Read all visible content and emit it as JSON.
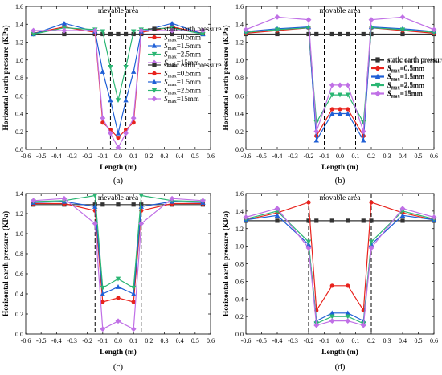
{
  "figure": {
    "panels": [
      "a",
      "b",
      "c",
      "d"
    ]
  },
  "chart_data": [
    {
      "id": "a",
      "type": "line",
      "panel_label": "(a)",
      "xlabel": "Length (m)",
      "ylabel": "Horizontal earth pressure (KPa)",
      "xlim": [
        -0.6,
        0.6
      ],
      "ylim": [
        0.0,
        1.6
      ],
      "xticks": [
        "-0.6",
        "-0.5",
        "-0.4",
        "-0.3",
        "-0.2",
        "-0.1",
        "0.0",
        "0.1",
        "0.2",
        "0.3",
        "0.4",
        "0.5",
        "0.6"
      ],
      "yticks": [
        "0.0",
        "0.2",
        "0.4",
        "0.6",
        "0.8",
        "1.0",
        "1.2",
        "1.4",
        "1.6"
      ],
      "annotation": "mevable area",
      "movable_bounds": [
        -0.05,
        0.05
      ],
      "legend_position": "right",
      "x": [
        -0.55,
        -0.35,
        -0.15,
        -0.1,
        -0.05,
        0.0,
        0.05,
        0.1,
        0.15,
        0.35,
        0.55
      ],
      "series": [
        {
          "name": "static earth pressure",
          "color": "#333333",
          "marker": "square",
          "values": [
            1.29,
            1.29,
            1.29,
            1.29,
            1.29,
            1.29,
            1.29,
            1.29,
            1.29,
            1.29,
            1.29
          ]
        },
        {
          "name": "S_max=0.5mm",
          "color": "#e8221c",
          "marker": "circle",
          "values": [
            1.3,
            1.37,
            1.31,
            0.3,
            0.22,
            0.13,
            0.22,
            0.3,
            1.31,
            1.37,
            1.3
          ]
        },
        {
          "name": "S_max=1.5mm",
          "color": "#1f5fd6",
          "marker": "triangle",
          "values": [
            1.29,
            1.41,
            1.32,
            0.87,
            0.55,
            0.18,
            0.55,
            0.87,
            1.32,
            1.41,
            1.29
          ]
        },
        {
          "name": "S_max=2.5mm",
          "color": "#2bb673",
          "marker": "triangle-down",
          "values": [
            1.29,
            1.36,
            1.34,
            1.32,
            0.92,
            0.55,
            0.92,
            1.32,
            1.34,
            1.36,
            1.29
          ]
        },
        {
          "name": "S_max=15mm",
          "color": "#c070e6",
          "marker": "diamond",
          "values": [
            1.33,
            1.33,
            1.33,
            0.35,
            0.18,
            0.02,
            0.18,
            0.35,
            1.33,
            1.33,
            1.33
          ]
        }
      ]
    },
    {
      "id": "b",
      "type": "line",
      "panel_label": "(b)",
      "xlabel": "Length (m)",
      "ylabel": "Horizontal earth pressure (KPa)",
      "xlim": [
        -0.6,
        0.6
      ],
      "ylim": [
        0.0,
        1.6
      ],
      "xticks": [
        "-0.6",
        "-0.5",
        "-0.4",
        "-0.3",
        "-0.2",
        "-0.1",
        "0.0",
        "0.1",
        "0.2",
        "0.3",
        "0.4",
        "0.5",
        "0.6"
      ],
      "yticks": [
        "0.0",
        "0.2",
        "0.4",
        "0.6",
        "0.8",
        "1.0",
        "1.2",
        "1.4",
        "1.6"
      ],
      "annotation": "movable area",
      "movable_bounds": [
        -0.1,
        0.1
      ],
      "legend_position": "right",
      "x": [
        -0.6,
        -0.4,
        -0.2,
        -0.15,
        -0.05,
        0.0,
        0.05,
        0.15,
        0.2,
        0.4,
        0.6
      ],
      "series": [
        {
          "name": "static earth pressure",
          "color": "#333333",
          "marker": "square",
          "values": [
            1.29,
            1.29,
            1.29,
            1.29,
            1.29,
            1.29,
            1.29,
            1.29,
            1.29,
            1.29,
            1.29
          ]
        },
        {
          "name": "S_max=0.5mm",
          "color": "#e8221c",
          "marker": "circle",
          "values": [
            1.3,
            1.33,
            1.36,
            0.15,
            0.45,
            0.45,
            0.45,
            0.15,
            1.36,
            1.33,
            1.3
          ]
        },
        {
          "name": "S_max=1.5mm",
          "color": "#1f5fd6",
          "marker": "triangle",
          "values": [
            1.32,
            1.35,
            1.37,
            0.1,
            0.4,
            0.4,
            0.4,
            0.1,
            1.37,
            1.35,
            1.32
          ]
        },
        {
          "name": "S_max=2.5mm",
          "color": "#2bb673",
          "marker": "triangle-down",
          "values": [
            1.31,
            1.34,
            1.36,
            0.3,
            0.61,
            0.61,
            0.61,
            0.3,
            1.36,
            1.34,
            1.31
          ]
        },
        {
          "name": "S_max=15mm",
          "color": "#c070e6",
          "marker": "diamond",
          "values": [
            1.34,
            1.48,
            1.45,
            0.2,
            0.72,
            0.72,
            0.72,
            0.2,
            1.45,
            1.48,
            1.34
          ]
        }
      ]
    },
    {
      "id": "c",
      "type": "line",
      "panel_label": "(c)",
      "xlabel": "Length (m)",
      "ylabel": "Horizontal earth pressure (KPa)",
      "xlim": [
        -0.6,
        0.6
      ],
      "ylim": [
        0.0,
        1.4
      ],
      "xticks": [
        "-0.6",
        "-0.5",
        "-0.4",
        "-0.3",
        "-0.2",
        "-0.1",
        "0.0",
        "0.1",
        "0.2",
        "0.3",
        "0.4",
        "0.5",
        "0.6"
      ],
      "yticks": [
        "0.0",
        "0.2",
        "0.4",
        "0.6",
        "0.8",
        "1.0",
        "1.2",
        "1.4"
      ],
      "annotation": "mevable area",
      "movable_bounds": [
        -0.15,
        0.15
      ],
      "legend_position": "right",
      "x": [
        -0.55,
        -0.35,
        -0.15,
        -0.1,
        0.0,
        0.1,
        0.15,
        0.35,
        0.55
      ],
      "series": [
        {
          "name": "static earth pressure",
          "color": "#333333",
          "marker": "square",
          "values": [
            1.29,
            1.29,
            1.29,
            1.29,
            1.29,
            1.29,
            1.29,
            1.29,
            1.29
          ]
        },
        {
          "name": "S_max=0.5mm",
          "color": "#e8221c",
          "marker": "circle",
          "values": [
            1.3,
            1.3,
            1.23,
            0.32,
            0.36,
            0.32,
            1.23,
            1.3,
            1.3
          ]
        },
        {
          "name": "S_max=1.5mm",
          "color": "#1f5fd6",
          "marker": "triangle",
          "values": [
            1.31,
            1.32,
            1.27,
            0.4,
            0.47,
            0.4,
            1.27,
            1.32,
            1.31
          ]
        },
        {
          "name": "S_max=2.5mm",
          "color": "#2bb673",
          "marker": "triangle-down",
          "values": [
            1.32,
            1.33,
            1.38,
            0.46,
            0.55,
            0.46,
            1.38,
            1.33,
            1.32
          ]
        },
        {
          "name": "S_max=15mm",
          "color": "#c070e6",
          "marker": "diamond",
          "values": [
            1.33,
            1.35,
            1.1,
            0.05,
            0.13,
            0.05,
            1.1,
            1.35,
            1.33
          ]
        }
      ]
    },
    {
      "id": "d",
      "type": "line",
      "panel_label": "(d)",
      "xlabel": "Length (m)",
      "ylabel": "Horizontal earth pressure (KPa)",
      "xlim": [
        -0.6,
        0.6
      ],
      "ylim": [
        0.0,
        1.6
      ],
      "xticks": [
        "-0.6",
        "-0.5",
        "-0.4",
        "-0.3",
        "-0.2",
        "-0.1",
        "0.0",
        "0.1",
        "0.2",
        "0.3",
        "0.4",
        "0.5",
        "0.6"
      ],
      "yticks": [
        "0.0",
        "0.2",
        "0.4",
        "0.6",
        "0.8",
        "1.0",
        "1.2",
        "1.4",
        "1.6"
      ],
      "annotation": "movable area",
      "movable_bounds": [
        -0.2,
        0.2
      ],
      "legend_position": "right",
      "x": [
        -0.6,
        -0.4,
        -0.2,
        -0.15,
        -0.05,
        0.05,
        0.15,
        0.2,
        0.4,
        0.6
      ],
      "series": [
        {
          "name": "static earth pressure",
          "color": "#333333",
          "marker": "square",
          "values": [
            1.29,
            1.29,
            1.29,
            1.29,
            1.29,
            1.29,
            1.29,
            1.29,
            1.29,
            1.29
          ]
        },
        {
          "name": "S_max=0.5mm",
          "color": "#e8221c",
          "marker": "circle",
          "values": [
            1.3,
            1.38,
            1.5,
            0.27,
            0.55,
            0.55,
            0.27,
            1.5,
            1.38,
            1.3
          ]
        },
        {
          "name": "S_max=1.5mm",
          "color": "#1f5fd6",
          "marker": "triangle",
          "values": [
            1.3,
            1.35,
            1.02,
            0.15,
            0.24,
            0.24,
            0.15,
            1.02,
            1.35,
            1.3
          ]
        },
        {
          "name": "S_max=2.5mm",
          "color": "#2bb673",
          "marker": "triangle-down",
          "values": [
            1.31,
            1.4,
            1.05,
            0.12,
            0.2,
            0.2,
            0.12,
            1.05,
            1.4,
            1.31
          ]
        },
        {
          "name": "S_max=15mm",
          "color": "#c070e6",
          "marker": "diamond",
          "values": [
            1.33,
            1.43,
            0.98,
            0.1,
            0.15,
            0.15,
            0.1,
            0.98,
            1.43,
            1.33
          ]
        }
      ]
    }
  ]
}
